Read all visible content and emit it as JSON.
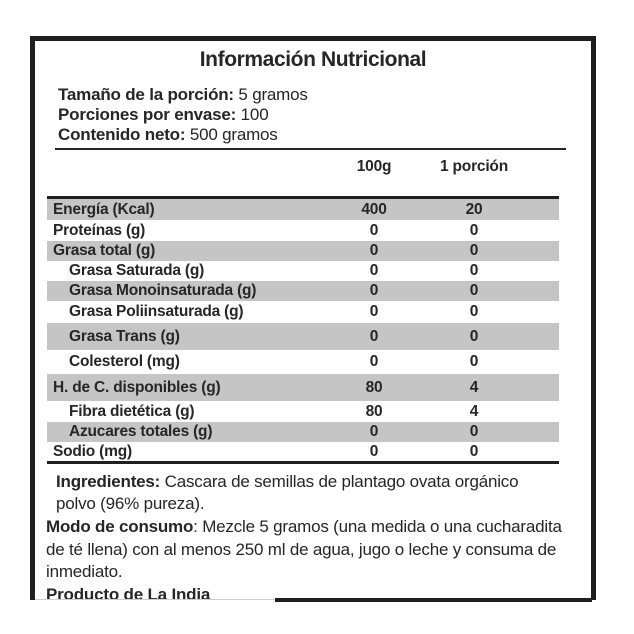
{
  "label": {
    "title": "Información Nutricional",
    "serving_info": [
      {
        "label": "Tamaño de la porción:",
        "value": " 5 gramos"
      },
      {
        "label": "Porciones por envase:",
        "value": " 100"
      },
      {
        "label": "Contenido neto:",
        "value": " 500 gramos"
      }
    ],
    "columns": {
      "col_100g": "100g",
      "col_portion": "1 porción"
    },
    "rows": [
      {
        "name": "Energía (Kcal)",
        "per_100g": "400",
        "per_portion": "20",
        "indent": false
      },
      {
        "name": "Proteínas (g)",
        "per_100g": "0",
        "per_portion": "0",
        "indent": false
      },
      {
        "name": "Grasa total (g)",
        "per_100g": "0",
        "per_portion": "0",
        "indent": false
      },
      {
        "name": "Grasa Saturada (g)",
        "per_100g": "0",
        "per_portion": "0",
        "indent": true
      },
      {
        "name": "Grasa Monoinsaturada (g)",
        "per_100g": "0",
        "per_portion": "0",
        "indent": true
      },
      {
        "name": "Grasa Poliinsaturada (g)",
        "per_100g": "0",
        "per_portion": "0",
        "indent": true
      },
      {
        "name": "Grasa Trans (g)",
        "per_100g": "0",
        "per_portion": "0",
        "indent": true
      },
      {
        "name": "Colesterol (mg)",
        "per_100g": "0",
        "per_portion": "0",
        "indent": true
      },
      {
        "name": "H. de C. disponibles (g)",
        "per_100g": "80",
        "per_portion": "4",
        "indent": false
      },
      {
        "name": "Fibra dietética (g)",
        "per_100g": "80",
        "per_portion": "4",
        "indent": true
      },
      {
        "name": "Azucares totales (g)",
        "per_100g": "0",
        "per_portion": "0",
        "indent": true
      },
      {
        "name": "Sodio (mg)",
        "per_100g": "0",
        "per_portion": "0",
        "indent": false
      }
    ],
    "ingredients": {
      "label": "Ingredientes:",
      "text": " Cascara de semillas de plantago ovata orgánico polvo (96% pureza)."
    },
    "usage": {
      "label": "Modo de consumo",
      "text": ": Mezcle 5 gramos  (una medida o una cucharadita de té llena)  con al menos  250 ml de agua, jugo o leche y consuma de inmediato."
    },
    "origin": "Producto de La India",
    "colors": {
      "shade": "#c5c5c5",
      "text": "#262626",
      "border": "#1f1f1f"
    }
  }
}
